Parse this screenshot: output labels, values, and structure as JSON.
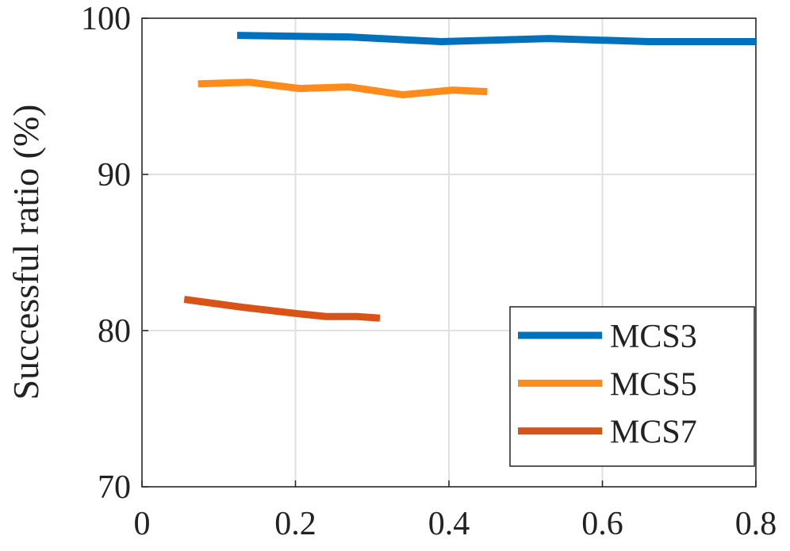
{
  "chart_data": {
    "type": "line",
    "y_label": "Successful ratio (%)",
    "xlim": [
      0,
      0.8
    ],
    "xticks": [
      0,
      0.2,
      0.4,
      0.6,
      0.8
    ],
    "ylim": [
      70,
      100
    ],
    "yticks": [
      70,
      80,
      90,
      100
    ],
    "grid": true,
    "legend": "lower right",
    "series": [
      {
        "name": "MCS3",
        "color": "#0072bd",
        "x": [
          0.124,
          0.27,
          0.39,
          0.53,
          0.66,
          0.8
        ],
        "values": [
          98.9,
          98.8,
          98.5,
          98.7,
          98.5,
          98.5
        ]
      },
      {
        "name": "MCS5",
        "color": "#ff8c1a",
        "x": [
          0.073,
          0.14,
          0.205,
          0.27,
          0.34,
          0.405,
          0.45
        ],
        "values": [
          95.8,
          95.9,
          95.5,
          95.6,
          95.1,
          95.4,
          95.3
        ]
      },
      {
        "name": "MCS7",
        "color": "#d95319",
        "x": [
          0.055,
          0.13,
          0.2,
          0.24,
          0.28,
          0.31
        ],
        "values": [
          82.0,
          81.5,
          81.1,
          80.9,
          80.9,
          80.8
        ]
      }
    ]
  }
}
